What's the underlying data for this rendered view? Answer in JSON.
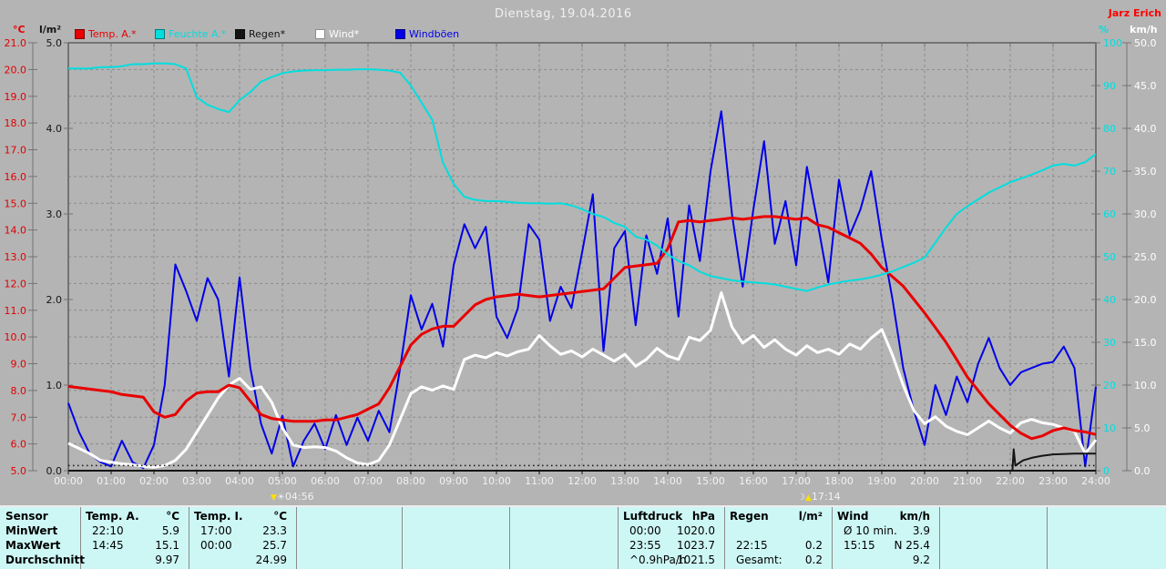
{
  "header": {
    "title": "Dienstag, 19.04.2016",
    "station": "Jarz Erich"
  },
  "legend": [
    {
      "label": "Temp. A.*",
      "color": "#e80000"
    },
    {
      "label": "Feuchte A.*",
      "color": "#00dede"
    },
    {
      "label": "Regen*",
      "color": "#141414"
    },
    {
      "label": "Wind*",
      "color": "#ffffff"
    },
    {
      "label": "Windböen",
      "color": "#0000e8"
    }
  ],
  "axes": {
    "left_temp": {
      "unit": "°C",
      "color": "#e00000",
      "min": 5,
      "max": 21,
      "step": 1,
      "ticks": [
        "21.0",
        "20.0",
        "19.0",
        "18.0",
        "17.0",
        "16.0",
        "15.0",
        "14.0",
        "13.0",
        "12.0",
        "11.0",
        "10.0",
        "9.0",
        "8.0",
        "7.0",
        "6.0",
        "5.0"
      ]
    },
    "left_rain": {
      "unit": "l/m²",
      "color": "#141414",
      "min": 0,
      "max": 5,
      "step": 1,
      "ticks": [
        "5.0",
        "4.0",
        "3.0",
        "2.0",
        "1.0",
        "0.0"
      ]
    },
    "right_hum": {
      "unit": "%",
      "color": "#00dede",
      "min": 0,
      "max": 100,
      "step": 10,
      "ticks": [
        "100",
        "90",
        "80",
        "70",
        "60",
        "50",
        "40",
        "30",
        "20",
        "10",
        "0"
      ]
    },
    "right_wind": {
      "unit": "km/h",
      "color": "#ffffff",
      "min": 0,
      "max": 50,
      "step": 5,
      "ticks": [
        "50.0",
        "45.0",
        "40.0",
        "35.0",
        "30.0",
        "25.0",
        "20.0",
        "15.0",
        "10.0",
        "5.0",
        "0.0"
      ]
    }
  },
  "x_axis": {
    "labels": [
      "00:00",
      "01:00",
      "02:00",
      "03:00",
      "04:00",
      "05:00",
      "06:00",
      "07:00",
      "08:00",
      "09:00",
      "10:00",
      "11:00",
      "12:00",
      "13:00",
      "14:00",
      "15:00",
      "16:00",
      "17:00",
      "18:00",
      "19:00",
      "20:00",
      "21:00",
      "22:00",
      "23:00",
      "24:00"
    ],
    "sunrise": {
      "time": "04:56",
      "hour": 4.933
    },
    "sunset": {
      "time": "17:14",
      "hour": 17.233
    }
  },
  "chart_data": {
    "type": "line",
    "title": "Dienstag, 19.04.2016",
    "x_range_hours": [
      0,
      24
    ],
    "x_step_hours": 0.25,
    "grid": "on",
    "series": [
      {
        "name": "Windböen",
        "unit": "km/h",
        "axis": "right_wind",
        "color": "#0000e8",
        "width": 2,
        "values": [
          7.9,
          4.5,
          2.0,
          1.0,
          0.5,
          3.5,
          1.0,
          0.3,
          3.0,
          10.0,
          24.1,
          21.0,
          17.5,
          22.5,
          20.0,
          11.0,
          22.6,
          12.0,
          5.5,
          2.0,
          6.4,
          0.5,
          3.5,
          5.5,
          2.5,
          6.5,
          3.0,
          6.2,
          3.5,
          7.0,
          4.5,
          12.0,
          20.5,
          16.5,
          19.5,
          14.5,
          24.0,
          28.8,
          26.0,
          28.5,
          18.0,
          15.5,
          19.0,
          28.8,
          27.0,
          17.5,
          21.5,
          19.0,
          25.5,
          32.3,
          14.0,
          26.0,
          28.0,
          17.0,
          27.5,
          23.0,
          29.5,
          18.0,
          31.0,
          24.5,
          35.0,
          42.0,
          30.0,
          21.5,
          30.5,
          38.5,
          26.5,
          31.5,
          24.0,
          35.5,
          29.0,
          22.0,
          34.0,
          27.5,
          30.5,
          35.0,
          27.0,
          20.0,
          12.0,
          7.0,
          3.0,
          10.0,
          6.5,
          11.0,
          8.0,
          12.5,
          15.5,
          12.0,
          10.0,
          11.5,
          12.0,
          12.5,
          12.7,
          14.5,
          12.0,
          0.5,
          9.8
        ]
      },
      {
        "name": "Wind",
        "unit": "km/h",
        "axis": "right_wind",
        "color": "#ffffff",
        "width": 3,
        "values": [
          3.2,
          2.6,
          2.0,
          1.2,
          1.0,
          0.8,
          0.7,
          0.5,
          0.4,
          0.6,
          1.2,
          2.5,
          4.5,
          6.5,
          8.5,
          10.0,
          10.8,
          9.5,
          9.8,
          8.0,
          5.0,
          3.0,
          2.7,
          2.8,
          2.7,
          2.3,
          1.5,
          0.9,
          0.7,
          1.2,
          3.0,
          6.0,
          9.0,
          9.8,
          9.4,
          9.9,
          9.5,
          13.0,
          13.5,
          13.2,
          13.8,
          13.4,
          13.9,
          14.2,
          15.8,
          14.6,
          13.6,
          14.0,
          13.3,
          14.2,
          13.5,
          12.8,
          13.6,
          12.2,
          13.0,
          14.3,
          13.4,
          13.0,
          15.6,
          15.2,
          16.4,
          20.8,
          16.8,
          14.9,
          15.8,
          14.4,
          15.3,
          14.2,
          13.5,
          14.6,
          13.8,
          14.2,
          13.6,
          14.8,
          14.2,
          15.5,
          16.5,
          13.5,
          10.0,
          7.0,
          5.5,
          6.3,
          5.2,
          4.6,
          4.2,
          5.0,
          5.8,
          5.0,
          4.4,
          5.6,
          6.0,
          5.6,
          5.4,
          5.0,
          4.6,
          2.0,
          3.6
        ]
      },
      {
        "name": "Temp. A.",
        "unit": "°C",
        "axis": "left_temp",
        "color": "#e80000",
        "width": 3,
        "values": [
          8.15,
          8.1,
          8.05,
          8.0,
          7.95,
          7.85,
          7.8,
          7.75,
          7.2,
          7.0,
          7.1,
          7.6,
          7.9,
          7.95,
          7.95,
          8.2,
          8.1,
          7.6,
          7.1,
          6.95,
          6.9,
          6.85,
          6.85,
          6.85,
          6.9,
          6.9,
          7.0,
          7.1,
          7.3,
          7.5,
          8.1,
          8.9,
          9.7,
          10.1,
          10.3,
          10.4,
          10.4,
          10.8,
          11.2,
          11.4,
          11.5,
          11.55,
          11.6,
          11.55,
          11.5,
          11.55,
          11.6,
          11.65,
          11.7,
          11.75,
          11.8,
          12.2,
          12.6,
          12.65,
          12.7,
          12.75,
          13.3,
          14.3,
          14.35,
          14.3,
          14.35,
          14.4,
          14.45,
          14.4,
          14.45,
          14.5,
          14.5,
          14.45,
          14.4,
          14.45,
          14.2,
          14.1,
          13.9,
          13.7,
          13.5,
          13.1,
          12.6,
          12.25,
          11.9,
          11.4,
          10.9,
          10.35,
          9.8,
          9.15,
          8.5,
          8.0,
          7.5,
          7.1,
          6.7,
          6.4,
          6.2,
          6.3,
          6.5,
          6.6,
          6.5,
          6.45,
          6.35
        ]
      },
      {
        "name": "Feuchte A.",
        "unit": "%",
        "axis": "right_hum",
        "color": "#00dede",
        "width": 2,
        "values": [
          94,
          94,
          94,
          94.3,
          94.3,
          94.5,
          95,
          95,
          95.2,
          95.2,
          95,
          94,
          87.3,
          85.5,
          84.5,
          83.8,
          86.6,
          88.5,
          90.9,
          92,
          92.9,
          93.3,
          93.5,
          93.6,
          93.6,
          93.7,
          93.7,
          93.8,
          93.8,
          93.7,
          93.5,
          93,
          90,
          86,
          82,
          72,
          67,
          64,
          63.3,
          63,
          63,
          62.8,
          62.6,
          62.5,
          62.5,
          62.4,
          62.5,
          62,
          61.1,
          60,
          59.3,
          57.9,
          57,
          54.7,
          54,
          52.6,
          50.5,
          49,
          48,
          46.5,
          45.5,
          45,
          44.5,
          44.2,
          44,
          43.8,
          43.5,
          43,
          42.5,
          42,
          42.8,
          43.5,
          44,
          44.4,
          44.7,
          45.2,
          45.8,
          46.6,
          47.6,
          48.6,
          49.8,
          53.3,
          56.8,
          60,
          61.8,
          63.4,
          65,
          66.2,
          67.4,
          68.3,
          69.2,
          70.2,
          71.3,
          71.7,
          71.3,
          72.1,
          74
        ]
      },
      {
        "name": "Regen",
        "unit": "l/m²",
        "axis": "left_rain",
        "color": "#141414",
        "width": 2,
        "points": [
          [
            0,
            0
          ],
          [
            22.05,
            0
          ],
          [
            22.08,
            0.25
          ],
          [
            22.12,
            0.06
          ],
          [
            22.3,
            0.12
          ],
          [
            22.5,
            0.15
          ],
          [
            22.75,
            0.175
          ],
          [
            23.0,
            0.19
          ],
          [
            23.5,
            0.2
          ],
          [
            24,
            0.2
          ]
        ],
        "baseline_value": 0.06
      }
    ]
  },
  "stats_table": {
    "row_labels": [
      "Sensor",
      "MinWert",
      "MaxWert",
      "Durchschnitt"
    ],
    "columns": [
      {
        "name": "Temp. A.",
        "unit": "°C",
        "rows": [
          [
            "22:10",
            "5.9"
          ],
          [
            "14:45",
            "15.1"
          ],
          [
            "",
            "9.97"
          ]
        ]
      },
      {
        "name": "Temp. I.",
        "unit": "°C",
        "rows": [
          [
            "17:00",
            "23.3"
          ],
          [
            "00:00",
            "25.7"
          ],
          [
            "",
            "24.99"
          ]
        ]
      },
      {
        "name": "",
        "unit": "",
        "rows": [
          [
            "",
            ""
          ],
          [
            "",
            ""
          ],
          [
            "",
            ""
          ]
        ]
      },
      {
        "name": "",
        "unit": "",
        "rows": [
          [
            "",
            ""
          ],
          [
            "",
            ""
          ],
          [
            "",
            ""
          ]
        ]
      },
      {
        "name": "",
        "unit": "",
        "rows": [
          [
            "",
            ""
          ],
          [
            "",
            ""
          ],
          [
            "",
            ""
          ]
        ]
      },
      {
        "name": "Luftdruck",
        "unit": "hPa",
        "rows": [
          [
            "00:00",
            "1020.0"
          ],
          [
            "23:55",
            "1023.7"
          ],
          [
            "^0.9hPa/h",
            "1021.5"
          ]
        ]
      },
      {
        "name": "Regen",
        "unit": "l/m²",
        "rows": [
          [
            "",
            ""
          ],
          [
            "22:15",
            "0.2"
          ],
          [
            "Gesamt:",
            "0.2"
          ]
        ]
      },
      {
        "name": "Wind",
        "unit": "km/h",
        "rows": [
          [
            "Ø 10 min.",
            "3.9"
          ],
          [
            "15:15",
            "N 25.4"
          ],
          [
            "",
            "9.2"
          ]
        ]
      },
      {
        "name": "",
        "unit": "",
        "rows": [
          [
            "",
            ""
          ],
          [
            "",
            ""
          ],
          [
            "",
            ""
          ]
        ]
      },
      {
        "name": "",
        "unit": "",
        "rows": [
          [
            "",
            ""
          ],
          [
            "",
            ""
          ],
          [
            "",
            ""
          ]
        ]
      }
    ]
  }
}
